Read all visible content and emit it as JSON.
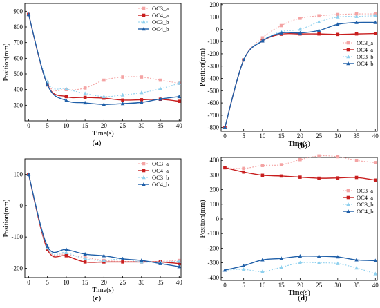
{
  "chart_data": [
    {
      "type": "line",
      "panel_label": "(a)",
      "xlabel": "Time(s)",
      "ylabel": "Position(mm)",
      "xlim": [
        -1,
        40.5
      ],
      "ylim": [
        200,
        950
      ],
      "xticks": [
        0,
        5,
        10,
        15,
        20,
        25,
        30,
        35,
        40
      ],
      "yticks": [
        300,
        400,
        500,
        600,
        700,
        800,
        900
      ],
      "legend_position": "top-right",
      "series": [
        {
          "name": "OC3_a",
          "color": "#f4a3a3",
          "dash": "2,2",
          "marker": "square",
          "x": [
            0,
            5,
            10,
            15,
            20,
            25,
            30,
            35,
            40
          ],
          "y": [
            880,
            440,
            400,
            410,
            460,
            480,
            480,
            460,
            440
          ]
        },
        {
          "name": "OC4_a",
          "color": "#c81e1e",
          "dash": "",
          "marker": "square",
          "x": [
            0,
            5,
            10,
            15,
            20,
            25,
            30,
            35,
            40
          ],
          "y": [
            880,
            430,
            355,
            350,
            345,
            333,
            335,
            338,
            325
          ]
        },
        {
          "name": "OC3_b",
          "color": "#8ed0ee",
          "dash": "2,2",
          "marker": "triangle",
          "x": [
            0,
            5,
            10,
            15,
            20,
            25,
            30,
            35,
            40
          ],
          "y": [
            880,
            450,
            405,
            375,
            355,
            365,
            380,
            405,
            440
          ]
        },
        {
          "name": "OC4_b",
          "color": "#1f5fa8",
          "dash": "",
          "marker": "triangle",
          "x": [
            0,
            5,
            10,
            15,
            20,
            25,
            30,
            35,
            40
          ],
          "y": [
            880,
            430,
            330,
            315,
            305,
            310,
            318,
            340,
            355
          ]
        }
      ]
    },
    {
      "type": "line",
      "panel_label": "(b)",
      "xlabel": "Time(s)",
      "ylabel": "Position(mm)",
      "xlim": [
        -1,
        40.5
      ],
      "ylim": [
        -830,
        210
      ],
      "xticks": [
        0,
        5,
        10,
        15,
        20,
        25,
        30,
        35,
        40
      ],
      "yticks": [
        -800,
        -700,
        -600,
        -500,
        -400,
        -300,
        -200,
        -100,
        0,
        100,
        200
      ],
      "legend_position": "right",
      "series": [
        {
          "name": "OC3_a",
          "color": "#f4a3a3",
          "dash": "2,2",
          "marker": "square",
          "x": [
            0,
            5,
            10,
            15,
            20,
            25,
            30,
            35,
            40
          ],
          "y": [
            -800,
            -250,
            -70,
            30,
            90,
            110,
            120,
            125,
            125
          ]
        },
        {
          "name": "OC4_a",
          "color": "#c81e1e",
          "dash": "",
          "marker": "square",
          "x": [
            0,
            5,
            10,
            15,
            20,
            25,
            30,
            35,
            40
          ],
          "y": [
            -800,
            -250,
            -95,
            -40,
            -38,
            -38,
            -42,
            -38,
            -35
          ]
        },
        {
          "name": "OC3_b",
          "color": "#8ed0ee",
          "dash": "2,2",
          "marker": "triangle",
          "x": [
            0,
            5,
            10,
            15,
            20,
            25,
            30,
            35,
            40
          ],
          "y": [
            -800,
            -250,
            -90,
            -20,
            0,
            60,
            100,
            105,
            110
          ]
        },
        {
          "name": "OC4_b",
          "color": "#1f5fa8",
          "dash": "",
          "marker": "triangle",
          "x": [
            0,
            5,
            10,
            15,
            20,
            25,
            30,
            35,
            40
          ],
          "y": [
            -800,
            -250,
            -95,
            -30,
            -30,
            -10,
            40,
            55,
            55
          ]
        }
      ]
    },
    {
      "type": "line",
      "panel_label": "(c)",
      "xlabel": "Time(s)",
      "ylabel": "Position(mm)",
      "xlim": [
        -1,
        40.5
      ],
      "ylim": [
        -230,
        150
      ],
      "xticks": [
        0,
        5,
        10,
        15,
        20,
        25,
        30,
        35,
        40
      ],
      "yticks": [
        -200,
        -100,
        0,
        100
      ],
      "legend_position": "top-right",
      "series": [
        {
          "name": "OC3_a",
          "color": "#f4a3a3",
          "dash": "2,2",
          "marker": "square",
          "x": [
            0,
            5,
            10,
            15,
            20,
            25,
            30,
            35,
            40
          ],
          "y": [
            100,
            -135,
            -155,
            -165,
            -175,
            -178,
            -178,
            -178,
            -175
          ]
        },
        {
          "name": "OC4_a",
          "color": "#c81e1e",
          "dash": "",
          "marker": "square",
          "x": [
            0,
            5,
            10,
            15,
            20,
            25,
            30,
            35,
            40
          ],
          "y": [
            100,
            -140,
            -160,
            -180,
            -180,
            -180,
            -180,
            -180,
            -185
          ]
        },
        {
          "name": "OC3_b",
          "color": "#8ed0ee",
          "dash": "2,2",
          "marker": "triangle",
          "x": [
            0,
            5,
            10,
            15,
            20,
            25,
            30,
            35,
            40
          ],
          "y": [
            100,
            -135,
            -150,
            -170,
            -175,
            -170,
            -180,
            -180,
            -178
          ]
        },
        {
          "name": "OC4_b",
          "color": "#1f5fa8",
          "dash": "",
          "marker": "triangle",
          "x": [
            0,
            5,
            10,
            15,
            20,
            25,
            30,
            35,
            40
          ],
          "y": [
            100,
            -130,
            -140,
            -155,
            -160,
            -170,
            -175,
            -185,
            -195
          ]
        }
      ]
    },
    {
      "type": "line",
      "panel_label": "(d)",
      "xlabel": "Time(s)",
      "ylabel": "Position(mm)",
      "xlim": [
        -1,
        40.5
      ],
      "ylim": [
        -420,
        420
      ],
      "xticks": [
        0,
        5,
        10,
        15,
        20,
        25,
        30,
        35,
        40
      ],
      "yticks": [
        -400,
        -300,
        -200,
        -100,
        0,
        100,
        200,
        300,
        400
      ],
      "legend_position": "right",
      "series": [
        {
          "name": "OC3_a",
          "color": "#f4a3a3",
          "dash": "2,2",
          "marker": "square",
          "x": [
            0,
            5,
            10,
            15,
            20,
            25,
            30,
            35,
            40
          ],
          "y": [
            350,
            345,
            365,
            370,
            405,
            430,
            425,
            400,
            385
          ]
        },
        {
          "name": "OC4_a",
          "color": "#c81e1e",
          "dash": "",
          "marker": "square",
          "x": [
            0,
            5,
            10,
            15,
            20,
            25,
            30,
            35,
            40
          ],
          "y": [
            350,
            320,
            298,
            293,
            285,
            278,
            280,
            283,
            265
          ]
        },
        {
          "name": "OC3_b",
          "color": "#8ed0ee",
          "dash": "2,2",
          "marker": "triangle",
          "x": [
            0,
            5,
            10,
            15,
            20,
            25,
            30,
            35,
            40
          ],
          "y": [
            -350,
            -345,
            -360,
            -330,
            -300,
            -300,
            -305,
            -335,
            -375
          ]
        },
        {
          "name": "OC4_b",
          "color": "#1f5fa8",
          "dash": "",
          "marker": "triangle",
          "x": [
            0,
            5,
            10,
            15,
            20,
            25,
            30,
            35,
            40
          ],
          "y": [
            -350,
            -320,
            -280,
            -270,
            -255,
            -255,
            -260,
            -280,
            -285
          ]
        }
      ]
    }
  ]
}
